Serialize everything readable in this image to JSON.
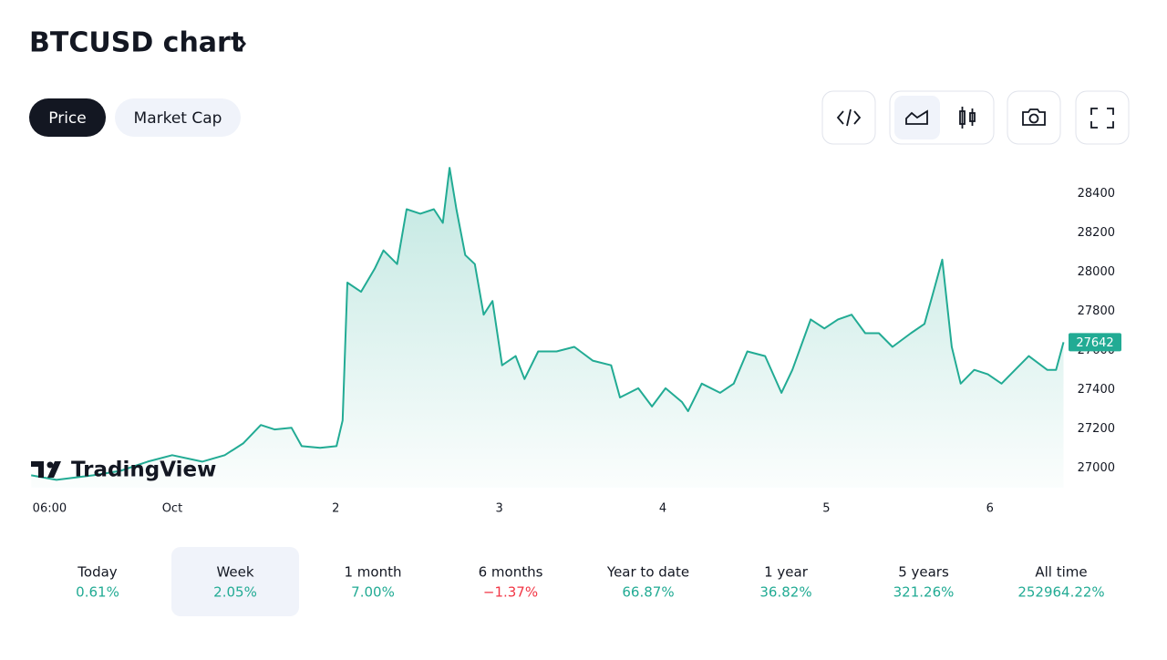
{
  "header": {
    "title": "BTCUSD chart"
  },
  "toggle": {
    "options": [
      "Price",
      "Market Cap"
    ],
    "selected": 0
  },
  "watermark": "TradingView",
  "chart_data": {
    "type": "line",
    "x": [
      3.3,
      7,
      12.4,
      16.4,
      20.4,
      24,
      28.4,
      31.7,
      34.4,
      37,
      39,
      41.5,
      43,
      45.7,
      48.1,
      49,
      49.7,
      51.7,
      53.7,
      55,
      57,
      58.4,
      60.4,
      62.4,
      63.7,
      64.7,
      65.7,
      67,
      68.4,
      69.7,
      71,
      72.4,
      74.4,
      75.7,
      77.7,
      80.4,
      83,
      85.7,
      88.4,
      89.7,
      92.4,
      94.4,
      96.4,
      98.8,
      99.7,
      101.7,
      104.4,
      106.4,
      108.4,
      111,
      113.4,
      115,
      117.7,
      119.7,
      121.7,
      123.7,
      125.7,
      127.7,
      129.7,
      132.4,
      134.4,
      135.7,
      137,
      138.4,
      139.7,
      141.7,
      143.7,
      145.7,
      147.7,
      149.7,
      152.4,
      153.7,
      154.8
    ],
    "series": [
      {
        "name": "BTCUSD",
        "color": "#22ab94",
        "values": [
          26963,
          26940,
          26963,
          26986,
          27033,
          27066,
          27033,
          27066,
          27126,
          27220,
          27197,
          27206,
          27112,
          27103,
          27112,
          27243,
          27946,
          27899,
          28016,
          28110,
          28040,
          28320,
          28297,
          28320,
          28250,
          28531,
          28320,
          28086,
          28040,
          27782,
          27852,
          27524,
          27571,
          27454,
          27595,
          27595,
          27618,
          27548,
          27524,
          27360,
          27407,
          27314,
          27407,
          27337,
          27290,
          27431,
          27384,
          27431,
          27595,
          27571,
          27384,
          27501,
          27758,
          27712,
          27758,
          27782,
          27688,
          27688,
          27618,
          27688,
          27735,
          27899,
          28063,
          27618,
          27431,
          27501,
          27478,
          27431,
          27501,
          27571,
          27501,
          27501,
          27642
        ]
      }
    ],
    "xlim": [
      3,
      155
    ],
    "xticks": [
      {
        "value": 6,
        "label": "06:00"
      },
      {
        "value": 24,
        "label": "Oct"
      },
      {
        "value": 48,
        "label": "2"
      },
      {
        "value": 72,
        "label": "3"
      },
      {
        "value": 96,
        "label": "4"
      },
      {
        "value": 120,
        "label": "5"
      },
      {
        "value": 144,
        "label": "6"
      }
    ],
    "ylim": [
      26900,
      28550
    ],
    "yticks": [
      27000,
      27200,
      27400,
      27600,
      27800,
      28000,
      28200,
      28400
    ],
    "grid": false
  },
  "periods": {
    "items": [
      {
        "name": "Today",
        "change": "0.61%"
      },
      {
        "name": "Week",
        "change": "2.05%"
      },
      {
        "name": "1 month",
        "change": "7.00%"
      },
      {
        "name": "6 months",
        "change": "−1.37%"
      },
      {
        "name": "Year to date",
        "change": "66.87%"
      },
      {
        "name": "1 year",
        "change": "36.82%"
      },
      {
        "name": "5 years",
        "change": "321.26%"
      },
      {
        "name": "All time",
        "change": "252964.22%"
      }
    ],
    "selected": 1
  }
}
